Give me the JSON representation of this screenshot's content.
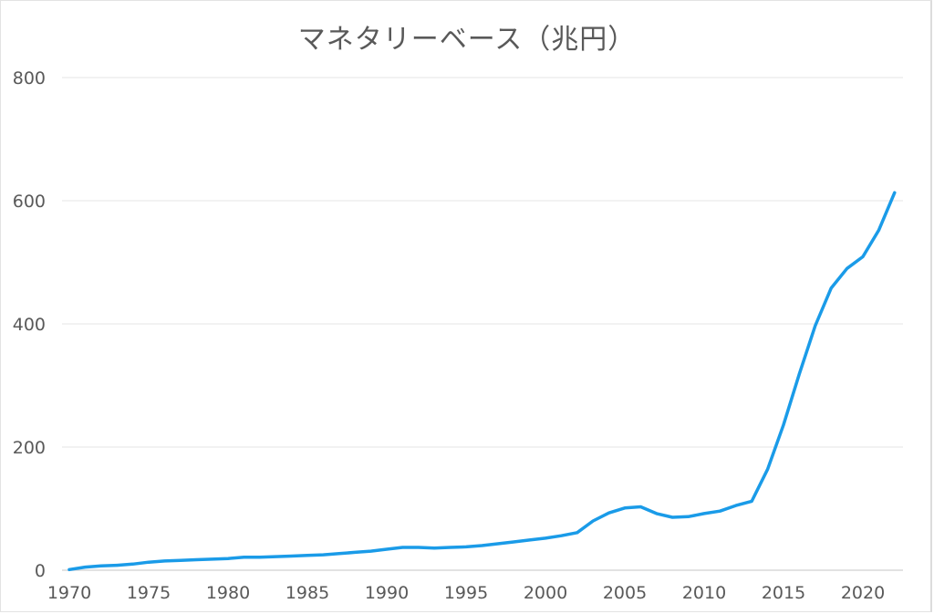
{
  "chart_data": {
    "type": "line",
    "title": "マネタリーベース（兆円）",
    "xlabel": "",
    "ylabel": "",
    "ylim": [
      0,
      800
    ],
    "yticks": [
      0,
      200,
      400,
      600,
      800
    ],
    "xticks": [
      1970,
      1975,
      1980,
      1985,
      1990,
      1995,
      2000,
      2005,
      2010,
      2015,
      2020
    ],
    "grid": true,
    "legend": "none",
    "series_color": "#1a9be8",
    "x": [
      1970,
      1971,
      1972,
      1973,
      1974,
      1975,
      1976,
      1977,
      1978,
      1979,
      1980,
      1981,
      1982,
      1983,
      1984,
      1985,
      1986,
      1987,
      1988,
      1989,
      1990,
      1991,
      1992,
      1993,
      1994,
      1995,
      1996,
      1997,
      1998,
      1999,
      2000,
      2001,
      2002,
      2003,
      2004,
      2005,
      2006,
      2007,
      2008,
      2009,
      2010,
      2011,
      2012,
      2013,
      2014,
      2015,
      2016,
      2017,
      2018,
      2019,
      2020,
      2021,
      2022
    ],
    "series": [
      {
        "name": "マネタリーベース",
        "values": [
          1,
          5,
          7,
          8,
          10,
          13,
          15,
          16,
          17,
          18,
          19,
          21,
          21,
          22,
          23,
          24,
          25,
          27,
          29,
          31,
          34,
          37,
          37,
          36,
          37,
          38,
          40,
          43,
          46,
          49,
          52,
          56,
          61,
          80,
          93,
          101,
          103,
          92,
          86,
          87,
          92,
          96,
          105,
          112,
          164,
          236,
          319,
          397,
          458,
          490,
          509,
          552,
          613
        ]
      }
    ]
  }
}
